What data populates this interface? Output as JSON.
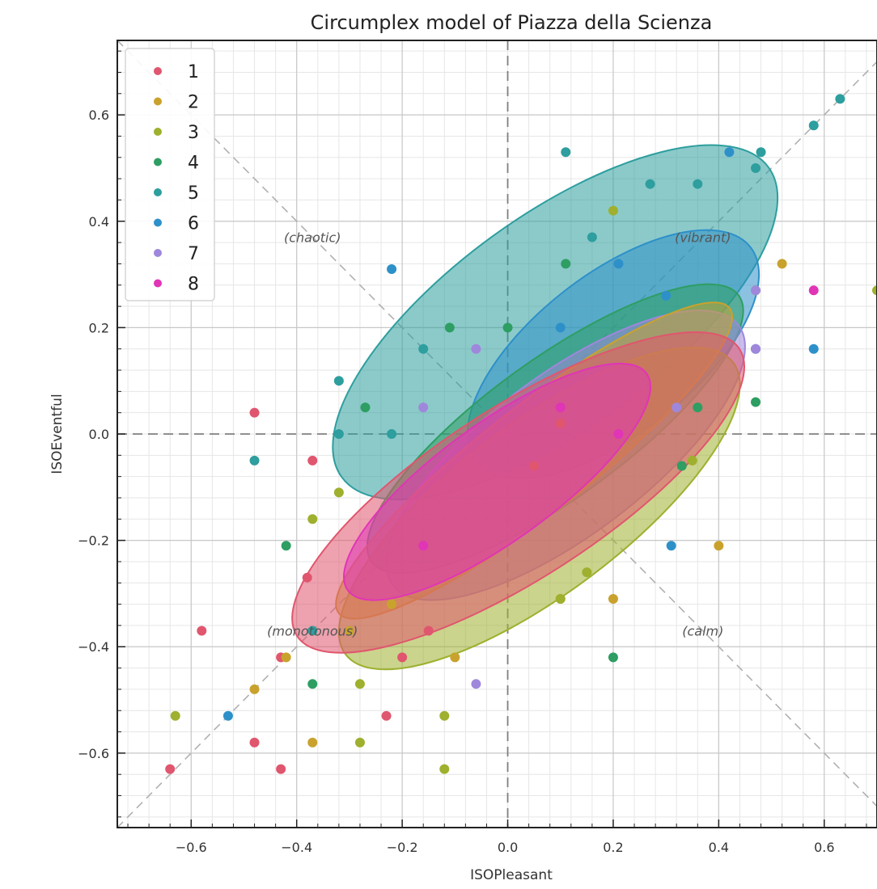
{
  "chart_data": {
    "type": "scatter",
    "title": "Circumplex model of Piazza della Scienza",
    "xlabel": "ISOPleasant",
    "ylabel": "ISOEventful",
    "xlim": [
      -0.74,
      0.7
    ],
    "ylim": [
      -0.74,
      0.74
    ],
    "x_ticks": [
      -0.6,
      -0.4,
      -0.2,
      0.0,
      0.2,
      0.4,
      0.6
    ],
    "y_ticks": [
      -0.6,
      -0.4,
      -0.2,
      0.0,
      0.2,
      0.4,
      0.6
    ],
    "x_tick_labels": [
      "−0.6",
      "−0.4",
      "−0.2",
      "0.0",
      "0.2",
      "0.4",
      "0.6"
    ],
    "y_tick_labels": [
      "−0.6",
      "−0.4",
      "−0.2",
      "0.0",
      "0.2",
      "0.4",
      "0.6"
    ],
    "grid": true,
    "legend_position": "top-left",
    "quadrant_labels": [
      {
        "text": "(chaotic)",
        "x": -0.37,
        "y": 0.37
      },
      {
        "text": "(vibrant)",
        "x": 0.37,
        "y": 0.37
      },
      {
        "text": "(monotonous)",
        "x": -0.37,
        "y": -0.37
      },
      {
        "text": "(calm)",
        "x": 0.37,
        "y": -0.37
      }
    ],
    "series": [
      {
        "name": "1",
        "color": "#e0566e",
        "points": [
          [
            -0.58,
            -0.37
          ],
          [
            -0.48,
            0.04
          ],
          [
            -0.37,
            -0.05
          ],
          [
            -0.38,
            -0.27
          ],
          [
            -0.43,
            -0.42
          ],
          [
            -0.64,
            -0.63
          ],
          [
            -0.48,
            -0.58
          ],
          [
            -0.43,
            -0.63
          ],
          [
            -0.23,
            -0.53
          ],
          [
            -0.15,
            -0.37
          ],
          [
            -0.2,
            -0.42
          ],
          [
            0.05,
            -0.06
          ],
          [
            0.1,
            0.02
          ]
        ],
        "ellipse": {
          "cx": 0.02,
          "cy": -0.11,
          "rx": 0.5,
          "ry": 0.16,
          "angle": 33
        }
      },
      {
        "name": "2",
        "color": "#c9a22e",
        "points": [
          [
            -0.48,
            -0.48
          ],
          [
            -0.37,
            -0.58
          ],
          [
            -0.42,
            -0.42
          ],
          [
            -0.3,
            -0.37
          ],
          [
            -0.22,
            -0.32
          ],
          [
            0.2,
            -0.31
          ],
          [
            0.1,
            -0.31
          ],
          [
            0.52,
            0.32
          ],
          [
            0.47,
            0.27
          ],
          [
            0.4,
            -0.21
          ],
          [
            -0.1,
            -0.42
          ]
        ],
        "ellipse": {
          "cx": 0.05,
          "cy": -0.05,
          "rx": 0.47,
          "ry": 0.1,
          "angle": 38
        }
      },
      {
        "name": "3",
        "color": "#9eb02e",
        "points": [
          [
            -0.63,
            -0.53
          ],
          [
            -0.37,
            -0.16
          ],
          [
            -0.32,
            -0.11
          ],
          [
            -0.28,
            -0.58
          ],
          [
            -0.12,
            -0.53
          ],
          [
            -0.12,
            -0.63
          ],
          [
            -0.28,
            -0.47
          ],
          [
            0.1,
            -0.31
          ],
          [
            0.15,
            -0.26
          ],
          [
            0.35,
            -0.05
          ],
          [
            0.7,
            0.27
          ],
          [
            0.2,
            0.42
          ]
        ],
        "ellipse": {
          "cx": 0.06,
          "cy": -0.14,
          "rx": 0.46,
          "ry": 0.16,
          "angle": 37
        }
      },
      {
        "name": "4",
        "color": "#2e9e63",
        "points": [
          [
            -0.42,
            -0.21
          ],
          [
            -0.37,
            -0.47
          ],
          [
            -0.27,
            0.05
          ],
          [
            -0.11,
            0.2
          ],
          [
            0.0,
            0.2
          ],
          [
            0.11,
            0.32
          ],
          [
            0.47,
            0.06
          ],
          [
            0.2,
            -0.42
          ],
          [
            0.36,
            0.05
          ],
          [
            0.33,
            -0.06
          ]
        ],
        "ellipse": {
          "cx": 0.09,
          "cy": 0.01,
          "rx": 0.43,
          "ry": 0.13,
          "angle": 36
        }
      },
      {
        "name": "5",
        "color": "#2e9e9e",
        "points": [
          [
            -0.48,
            -0.05
          ],
          [
            -0.32,
            0.1
          ],
          [
            -0.32,
            0.0
          ],
          [
            -0.22,
            0.0
          ],
          [
            -0.16,
            0.16
          ],
          [
            0.11,
            0.53
          ],
          [
            0.16,
            0.37
          ],
          [
            0.27,
            0.47
          ],
          [
            0.36,
            0.47
          ],
          [
            0.48,
            0.53
          ],
          [
            0.58,
            0.58
          ],
          [
            0.63,
            0.63
          ],
          [
            0.47,
            0.5
          ],
          [
            -0.37,
            -0.37
          ]
        ],
        "ellipse": {
          "cx": 0.09,
          "cy": 0.21,
          "rx": 0.5,
          "ry": 0.2,
          "angle": 36
        }
      },
      {
        "name": "6",
        "color": "#2e90c9",
        "points": [
          [
            -0.53,
            -0.53
          ],
          [
            -0.22,
            0.31
          ],
          [
            0.31,
            -0.21
          ],
          [
            0.47,
            0.16
          ],
          [
            0.58,
            0.16
          ],
          [
            0.42,
            0.53
          ],
          [
            0.21,
            0.32
          ],
          [
            0.3,
            0.26
          ],
          [
            0.1,
            0.2
          ]
        ],
        "ellipse": {
          "cx": 0.2,
          "cy": 0.15,
          "rx": 0.33,
          "ry": 0.15,
          "angle": 38
        }
      },
      {
        "name": "7",
        "color": "#9f87db",
        "points": [
          [
            -0.06,
            -0.47
          ],
          [
            -0.06,
            0.16
          ],
          [
            0.47,
            0.16
          ],
          [
            0.32,
            0.05
          ],
          [
            -0.16,
            0.05
          ],
          [
            0.47,
            0.27
          ]
        ],
        "ellipse": {
          "cx": 0.11,
          "cy": -0.04,
          "rx": 0.41,
          "ry": 0.15,
          "angle": 37
        }
      },
      {
        "name": "8",
        "color": "#e035b6",
        "points": [
          [
            0.58,
            0.27
          ],
          [
            -0.16,
            -0.21
          ],
          [
            0.21,
            0.0
          ],
          [
            0.1,
            0.05
          ]
        ],
        "ellipse": {
          "cx": -0.02,
          "cy": -0.09,
          "rx": 0.35,
          "ry": 0.11,
          "angle": 36
        }
      }
    ]
  }
}
